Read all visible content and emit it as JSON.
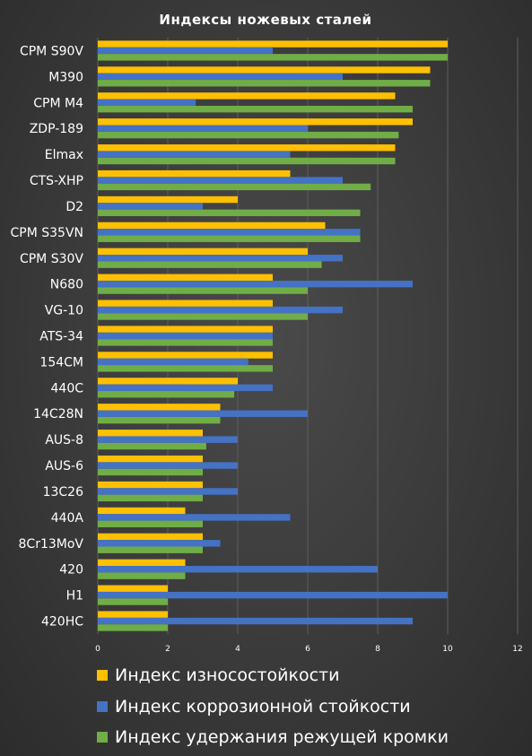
{
  "chart_data": {
    "type": "bar",
    "orientation": "horizontal",
    "title": "Индексы ножевых сталей",
    "categories": [
      "CPM S90V",
      "M390",
      "CPM M4",
      "ZDP-189",
      "Elmax",
      "CTS-XHP",
      "D2",
      "CPM S35VN",
      "CPM S30V",
      "N680",
      "VG-10",
      "ATS-34",
      "154CM",
      "440C",
      "14C28N",
      "AUS-8",
      "AUS-6",
      "13C26",
      "440A",
      "8Cr13MoV",
      "420",
      "H1",
      "420HC"
    ],
    "series": [
      {
        "name": "Индекс износостойкости",
        "color": "#FFC000",
        "values": [
          10,
          9.5,
          8.5,
          9,
          8.5,
          5.5,
          4,
          6.5,
          6,
          5,
          5,
          5,
          5,
          4,
          3.5,
          3,
          3,
          3,
          2.5,
          3,
          2.5,
          2,
          2
        ]
      },
      {
        "name": "Индекс коррозионной стойкости",
        "color": "#4472C4",
        "values": [
          5,
          7,
          2.8,
          6,
          5.5,
          7,
          3,
          7.5,
          7,
          9,
          7,
          5,
          4.3,
          5,
          6,
          4,
          4,
          4,
          5.5,
          3.5,
          8,
          10,
          9
        ]
      },
      {
        "name": "Индекс удержания режущей кромки",
        "color": "#70AD47",
        "values": [
          10,
          9.5,
          9,
          8.6,
          8.5,
          7.8,
          7.5,
          7.5,
          6.4,
          6,
          6,
          5,
          5,
          3.9,
          3.5,
          3.1,
          3,
          3,
          3,
          3,
          2.5,
          2,
          2
        ]
      }
    ],
    "xlim": [
      0,
      12
    ],
    "xticks": [
      "0",
      "2",
      "4",
      "6",
      "8",
      "10",
      "12"
    ],
    "grid": true,
    "legend_position": "bottom"
  }
}
